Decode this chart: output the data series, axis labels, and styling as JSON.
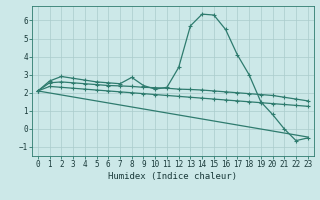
{
  "xlabel": "Humidex (Indice chaleur)",
  "background_color": "#cce8e8",
  "line_color": "#2e7b6e",
  "grid_color": "#aacccc",
  "xlim": [
    -0.5,
    23.5
  ],
  "ylim": [
    -1.5,
    6.8
  ],
  "xticks": [
    0,
    1,
    2,
    3,
    4,
    5,
    6,
    7,
    8,
    9,
    10,
    11,
    12,
    13,
    14,
    15,
    16,
    17,
    18,
    19,
    20,
    21,
    22,
    23
  ],
  "yticks": [
    -1,
    0,
    1,
    2,
    3,
    4,
    5,
    6
  ],
  "line1_x": [
    0,
    1,
    2,
    3,
    4,
    5,
    6,
    7,
    8,
    9,
    10,
    11,
    12,
    13,
    14,
    15,
    16,
    17,
    18,
    19,
    20,
    21,
    22,
    23
  ],
  "line1_y": [
    2.1,
    2.65,
    2.9,
    2.8,
    2.7,
    2.6,
    2.55,
    2.5,
    2.85,
    2.4,
    2.2,
    2.3,
    3.4,
    5.7,
    6.35,
    6.3,
    5.5,
    4.1,
    3.0,
    1.5,
    0.8,
    0.0,
    -0.65,
    -0.5
  ],
  "line2_x": [
    0,
    1,
    2,
    3,
    4,
    5,
    6,
    7,
    8,
    9,
    10,
    11,
    12,
    13,
    14,
    15,
    16,
    17,
    18,
    19,
    20,
    21,
    22,
    23
  ],
  "line2_y": [
    2.1,
    2.55,
    2.6,
    2.55,
    2.5,
    2.45,
    2.4,
    2.38,
    2.35,
    2.3,
    2.28,
    2.25,
    2.2,
    2.18,
    2.15,
    2.1,
    2.05,
    2.0,
    1.95,
    1.9,
    1.85,
    1.75,
    1.65,
    1.55
  ],
  "line3_x": [
    0,
    1,
    2,
    3,
    4,
    5,
    6,
    7,
    8,
    9,
    10,
    11,
    12,
    13,
    14,
    15,
    16,
    17,
    18,
    19,
    20,
    21,
    22,
    23
  ],
  "line3_y": [
    2.1,
    2.35,
    2.3,
    2.25,
    2.2,
    2.15,
    2.1,
    2.05,
    2.0,
    1.95,
    1.9,
    1.85,
    1.8,
    1.75,
    1.7,
    1.65,
    1.6,
    1.55,
    1.5,
    1.45,
    1.4,
    1.35,
    1.3,
    1.25
  ],
  "line4_x": [
    0,
    23
  ],
  "line4_y": [
    2.1,
    -0.45
  ],
  "markersize": 3,
  "linewidth": 0.9,
  "tick_fontsize": 5.5,
  "xlabel_fontsize": 6.5
}
